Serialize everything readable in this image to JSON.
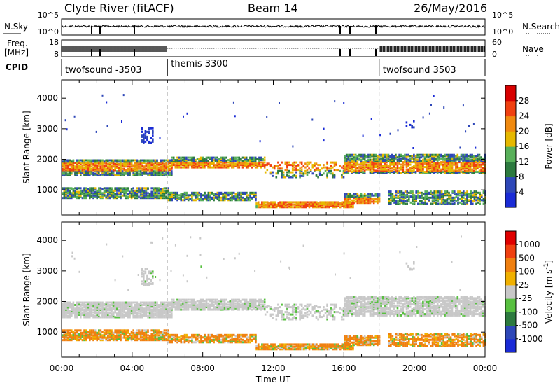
{
  "header": {
    "title": "Clyde River (fitACF)",
    "beam": "Beam 14",
    "date": "26/May/2016"
  },
  "chart_data": [
    {
      "type": "line",
      "name": "nsky-nsearch",
      "left_label": "N.Sky",
      "right_label": "N.Search",
      "left_ticks": [
        "10^5",
        "10^0"
      ],
      "right_ticks": [
        "10^5",
        "10^0"
      ],
      "note": "noise levels, log scale"
    },
    {
      "type": "line",
      "name": "freq-nave",
      "left_label": "Freq.",
      "left_unit": "[MHz]",
      "right_label": "Nave",
      "left_ticks": [
        "18",
        "8"
      ],
      "right_ticks": [
        "60",
        "0"
      ],
      "dotted_level_fraction": 0.5
    },
    {
      "type": "table",
      "name": "cpid",
      "label": "CPID",
      "segments": [
        {
          "start_h": 0,
          "end_h": 6,
          "name": "twofsound -3503"
        },
        {
          "start_h": 6,
          "end_h": 18,
          "name": "themis 3300"
        },
        {
          "start_h": 18,
          "end_h": 24,
          "name": "twofsound 3503"
        }
      ]
    },
    {
      "type": "heatmap",
      "name": "power",
      "ylabel": "Slant Range [km]",
      "ylim": [
        180,
        4600
      ],
      "yticks": [
        1000,
        2000,
        3000,
        4000
      ],
      "xlim": [
        0,
        24
      ],
      "colorbar": {
        "label": "Power [dB]",
        "ticks": [
          "4",
          "8",
          "12",
          "16",
          "20",
          "24",
          "28"
        ],
        "colors": [
          "#1a2bd6",
          "#2e47b8",
          "#2d7a3f",
          "#58b05a",
          "#e6b800",
          "#f08a10",
          "#f04010",
          "#d80000"
        ]
      }
    },
    {
      "type": "heatmap",
      "name": "velocity",
      "ylabel": "Slant Range [km]",
      "ylim": [
        180,
        4600
      ],
      "yticks": [
        1000,
        2000,
        3000,
        4000
      ],
      "xlim": [
        0,
        24
      ],
      "xlabel": "Time UT",
      "xticks": [
        "00:00",
        "04:00",
        "08:00",
        "12:00",
        "16:00",
        "20:00",
        "00:00"
      ],
      "colorbar": {
        "label": "Velocity [m s",
        "label_sup": "-1",
        "label_end": "]",
        "ticks": [
          "1000",
          "500",
          "100",
          "25",
          "-25",
          "-100",
          "-500",
          "-1000"
        ],
        "colors": [
          "#1a2bd6",
          "#2e47b8",
          "#2d7a3f",
          "#58c040",
          "#c8c8c8",
          "#f0b000",
          "#f08010",
          "#f04010",
          "#e00000"
        ]
      }
    }
  ]
}
